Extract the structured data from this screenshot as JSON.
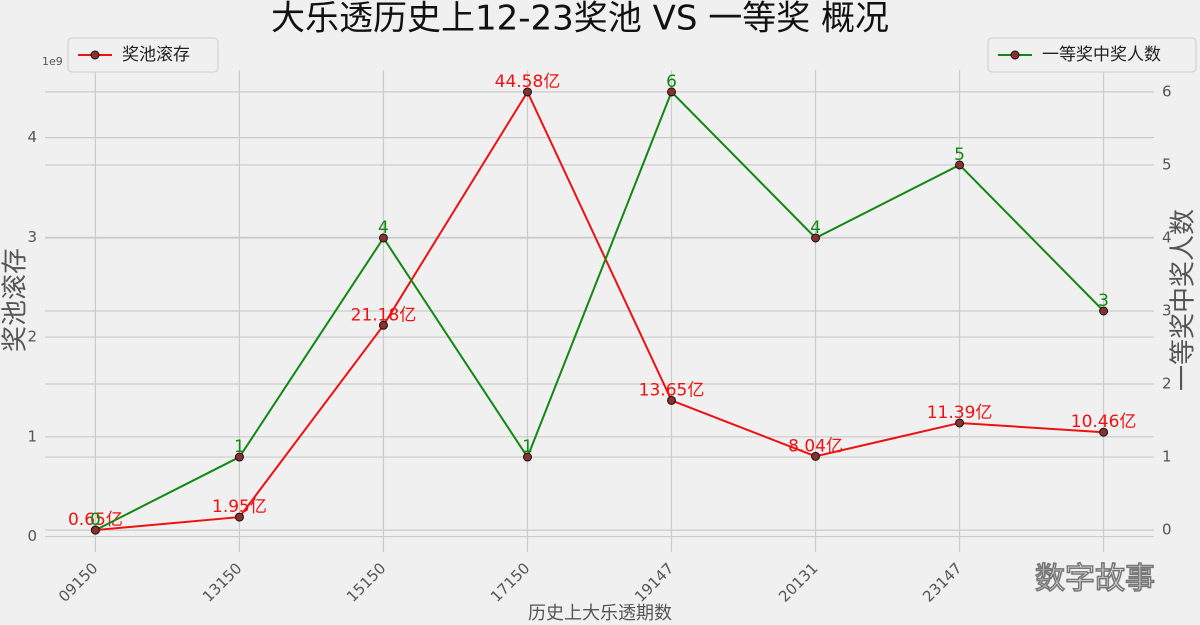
{
  "chart_data": {
    "type": "line",
    "title": "大乐透历史上12-23奖池 VS 一等奖 概况",
    "xlabel": "历史上大乐透期数",
    "ylabel": "奖池滚存",
    "y2label": "一等奖中奖人数",
    "y_offset_label": "1e9",
    "watermark": "数字故事",
    "categories": [
      "09150",
      "13150",
      "15150",
      "17150",
      "19147",
      "20131",
      "23147",
      null
    ],
    "series": [
      {
        "name": "奖池滚存",
        "color": "#ee1111",
        "marker_color": "#8b2f2f",
        "legend": "upper left",
        "values": [
          65000000,
          195000000,
          2118000000,
          4458000000,
          1365000000,
          804000000,
          1139000000,
          1046000000
        ],
        "value_labels": [
          "0.65亿",
          "1.95亿",
          "21.18亿",
          "44.58亿",
          "13.65亿",
          "8.04亿",
          "11.39亿",
          "10.46亿"
        ]
      },
      {
        "name": "一等奖中奖人数",
        "color": "#118811",
        "marker_color": "#8b2f2f",
        "axis": "y2",
        "legend": "upper right",
        "values": [
          0,
          1,
          4,
          1,
          6,
          4,
          5,
          3
        ]
      }
    ],
    "ylim": [
      -155000000,
      4678000000
    ],
    "yticks": [
      {
        "value": 0,
        "label": "0"
      },
      {
        "value": 1000000000,
        "label": "1"
      },
      {
        "value": 2000000000,
        "label": "2"
      },
      {
        "value": 3000000000,
        "label": "3"
      },
      {
        "value": 4000000000,
        "label": "4"
      }
    ],
    "y2lim": [
      -0.3,
      6.3
    ],
    "y2ticks": [
      0,
      1,
      2,
      3,
      4,
      5,
      6
    ],
    "grid": true
  }
}
